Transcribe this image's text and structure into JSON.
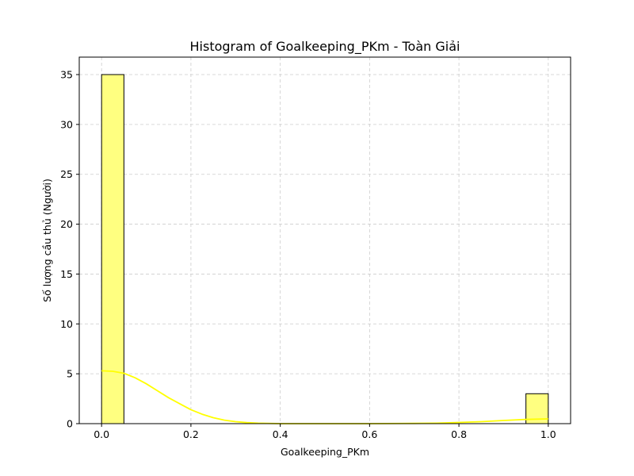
{
  "chart_data": {
    "type": "bar",
    "title": "Histogram of Goalkeeping_PKm - Toàn Giải",
    "xlabel": "Goalkeeping_PKm",
    "ylabel": "Số lượng cầu thủ (Người)",
    "xlim": [
      -0.05,
      1.05
    ],
    "ylim": [
      0,
      36.75
    ],
    "x_ticks": [
      "0.0",
      "0.2",
      "0.4",
      "0.6",
      "0.8",
      "1.0"
    ],
    "y_ticks": [
      "0",
      "5",
      "10",
      "15",
      "20",
      "25",
      "30",
      "35"
    ],
    "grid": true,
    "bars": [
      {
        "x_start": 0.0,
        "x_end": 0.05,
        "count": 35
      },
      {
        "x_start": 0.95,
        "x_end": 1.0,
        "count": 3
      }
    ],
    "kde": {
      "x": [
        0.0,
        0.025,
        0.05,
        0.075,
        0.1,
        0.125,
        0.15,
        0.175,
        0.2,
        0.225,
        0.25,
        0.275,
        0.3,
        0.325,
        0.35,
        0.4,
        0.5,
        0.6,
        0.7,
        0.75,
        0.8,
        0.85,
        0.9,
        0.95,
        1.0
      ],
      "y": [
        5.3,
        5.25,
        5.05,
        4.6,
        4.0,
        3.3,
        2.6,
        2.0,
        1.4,
        0.95,
        0.6,
        0.35,
        0.2,
        0.1,
        0.05,
        0.0,
        0.0,
        0.0,
        0.02,
        0.05,
        0.12,
        0.2,
        0.32,
        0.42,
        0.48
      ]
    },
    "colors": {
      "bar_fill": "#ffff80",
      "bar_edge": "#000000",
      "kde_line": "#ffff00",
      "grid": "#cccccc"
    }
  }
}
